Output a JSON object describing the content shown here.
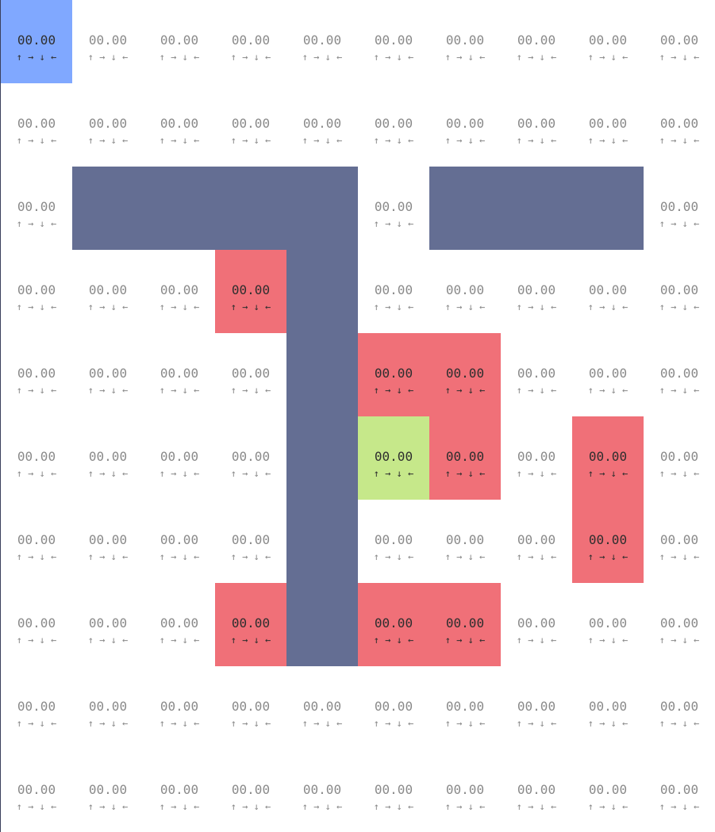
{
  "grid": {
    "rows": [
      [
        "agent",
        "empty",
        "empty",
        "empty",
        "empty",
        "empty",
        "empty",
        "empty",
        "empty",
        "empty"
      ],
      [
        "empty",
        "empty",
        "empty",
        "empty",
        "empty",
        "empty",
        "empty",
        "empty",
        "empty",
        "empty"
      ],
      [
        "empty",
        "wall",
        "wall",
        "wall",
        "wall",
        "empty",
        "wall",
        "wall",
        "wall",
        "empty"
      ],
      [
        "empty",
        "empty",
        "empty",
        "trap",
        "wall",
        "empty",
        "empty",
        "empty",
        "empty",
        "empty"
      ],
      [
        "empty",
        "empty",
        "empty",
        "empty",
        "wall",
        "trap",
        "trap",
        "empty",
        "empty",
        "empty"
      ],
      [
        "empty",
        "empty",
        "empty",
        "empty",
        "wall",
        "goal",
        "trap",
        "empty",
        "trap",
        "empty"
      ],
      [
        "empty",
        "empty",
        "empty",
        "empty",
        "wall",
        "empty",
        "empty",
        "empty",
        "trap",
        "empty"
      ],
      [
        "empty",
        "empty",
        "empty",
        "trap",
        "wall",
        "trap",
        "trap",
        "empty",
        "empty",
        "empty"
      ],
      [
        "empty",
        "empty",
        "empty",
        "empty",
        "empty",
        "empty",
        "empty",
        "empty",
        "empty",
        "empty"
      ],
      [
        "empty",
        "empty",
        "empty",
        "empty",
        "empty",
        "empty",
        "empty",
        "empty",
        "empty",
        "empty"
      ]
    ],
    "value_text": "00.00",
    "arrows_text": "↑ → ↓ ←",
    "colors": {
      "wall": "#646e93",
      "trap": "#f07078",
      "goal": "#c6e88a",
      "agent": "#80a8ff",
      "empty": "#ffffff"
    }
  }
}
